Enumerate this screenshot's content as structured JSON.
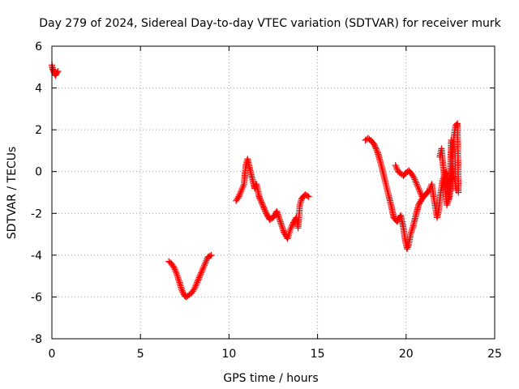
{
  "chart_data": {
    "type": "scatter",
    "title": "Day 279 of 2024, Sidereal Day-to-day VTEC variation (SDTVAR) for receiver murk",
    "xlabel": "GPS time / hours",
    "ylabel": "SDTVAR / TECUs",
    "xlim": [
      0,
      25
    ],
    "ylim": [
      -8,
      6
    ],
    "xticks": [
      "0",
      "5",
      "10",
      "15",
      "20",
      "25"
    ],
    "yticks": [
      "-8",
      "-6",
      "-4",
      "-2",
      "0",
      "2",
      "4",
      "6"
    ],
    "grid": true,
    "marker": "+",
    "color": "#ff0000",
    "series": [
      {
        "name": "SDTVAR",
        "segments": [
          [
            [
              0.0,
              5.1
            ],
            [
              0.05,
              4.9
            ],
            [
              0.1,
              4.8
            ],
            [
              0.15,
              4.7
            ],
            [
              0.2,
              4.6
            ],
            [
              0.25,
              4.7
            ],
            [
              0.3,
              4.75
            ],
            [
              0.35,
              4.8
            ]
          ],
          [
            [
              6.6,
              -4.3
            ],
            [
              6.75,
              -4.4
            ],
            [
              6.9,
              -4.6
            ],
            [
              7.05,
              -4.9
            ],
            [
              7.2,
              -5.3
            ],
            [
              7.35,
              -5.7
            ],
            [
              7.5,
              -5.95
            ],
            [
              7.6,
              -6.0
            ],
            [
              7.75,
              -5.9
            ],
            [
              7.9,
              -5.8
            ],
            [
              8.05,
              -5.6
            ],
            [
              8.2,
              -5.3
            ],
            [
              8.35,
              -5.0
            ],
            [
              8.5,
              -4.7
            ],
            [
              8.65,
              -4.4
            ],
            [
              8.8,
              -4.1
            ],
            [
              9.0,
              -4.0
            ]
          ],
          [
            [
              10.4,
              -1.4
            ],
            [
              10.55,
              -1.2
            ],
            [
              10.7,
              -0.9
            ],
            [
              10.85,
              -0.6
            ],
            [
              10.95,
              0.3
            ],
            [
              11.05,
              0.6
            ],
            [
              11.15,
              0.2
            ],
            [
              11.3,
              -0.3
            ],
            [
              11.45,
              -0.8
            ],
            [
              11.55,
              -0.6
            ],
            [
              11.7,
              -1.2
            ],
            [
              11.9,
              -1.6
            ],
            [
              12.1,
              -2.0
            ],
            [
              12.3,
              -2.3
            ],
            [
              12.5,
              -2.2
            ],
            [
              12.7,
              -1.9
            ],
            [
              12.9,
              -2.4
            ],
            [
              13.1,
              -2.9
            ],
            [
              13.3,
              -3.2
            ],
            [
              13.45,
              -2.8
            ],
            [
              13.6,
              -2.5
            ],
            [
              13.8,
              -2.2
            ],
            [
              13.9,
              -2.7
            ],
            [
              14.0,
              -1.6
            ],
            [
              14.1,
              -1.3
            ],
            [
              14.3,
              -1.1
            ],
            [
              14.5,
              -1.2
            ]
          ],
          [
            [
              17.7,
              1.5
            ],
            [
              17.85,
              1.6
            ],
            [
              18.0,
              1.5
            ],
            [
              18.2,
              1.3
            ],
            [
              18.4,
              0.9
            ],
            [
              18.6,
              0.3
            ],
            [
              18.8,
              -0.4
            ],
            [
              19.0,
              -1.1
            ],
            [
              19.15,
              -1.6
            ],
            [
              19.3,
              -2.2
            ],
            [
              19.5,
              -2.4
            ],
            [
              19.7,
              -2.1
            ],
            [
              19.85,
              -2.7
            ],
            [
              19.95,
              -3.3
            ],
            [
              20.05,
              -3.7
            ],
            [
              20.15,
              -3.5
            ],
            [
              20.25,
              -3.0
            ],
            [
              20.4,
              -2.6
            ],
            [
              20.55,
              -2.1
            ],
            [
              20.7,
              -1.6
            ],
            [
              20.9,
              -1.3
            ],
            [
              21.1,
              -1.1
            ],
            [
              21.3,
              -0.9
            ],
            [
              21.45,
              -0.6
            ],
            [
              21.55,
              -1.2
            ],
            [
              21.75,
              -2.2
            ],
            [
              21.85,
              -1.8
            ],
            [
              21.95,
              -1.0
            ],
            [
              22.05,
              -0.5
            ],
            [
              22.15,
              -0.2
            ],
            [
              22.25,
              0.0
            ],
            [
              22.4,
              -1.3
            ],
            [
              22.5,
              -0.8
            ],
            [
              22.6,
              0.4
            ],
            [
              22.7,
              1.7
            ],
            [
              22.8,
              2.2
            ],
            [
              22.9,
              2.3
            ],
            [
              22.95,
              -1.0
            ]
          ],
          [
            [
              19.4,
              0.3
            ],
            [
              19.55,
              0.0
            ],
            [
              19.7,
              -0.1
            ],
            [
              19.85,
              -0.2
            ],
            [
              20.0,
              -0.05
            ],
            [
              20.15,
              0.05
            ],
            [
              20.3,
              -0.1
            ],
            [
              20.45,
              -0.3
            ],
            [
              20.6,
              -0.6
            ],
            [
              20.75,
              -0.9
            ],
            [
              20.9,
              -1.2
            ]
          ],
          [
            [
              21.9,
              0.7
            ],
            [
              22.0,
              1.1
            ],
            [
              22.1,
              0.2
            ],
            [
              22.3,
              -1.6
            ],
            [
              22.45,
              -1.2
            ],
            [
              22.55,
              1.5
            ],
            [
              22.65,
              -0.2
            ],
            [
              22.75,
              -0.4
            ],
            [
              22.85,
              -0.9
            ]
          ]
        ]
      }
    ]
  }
}
